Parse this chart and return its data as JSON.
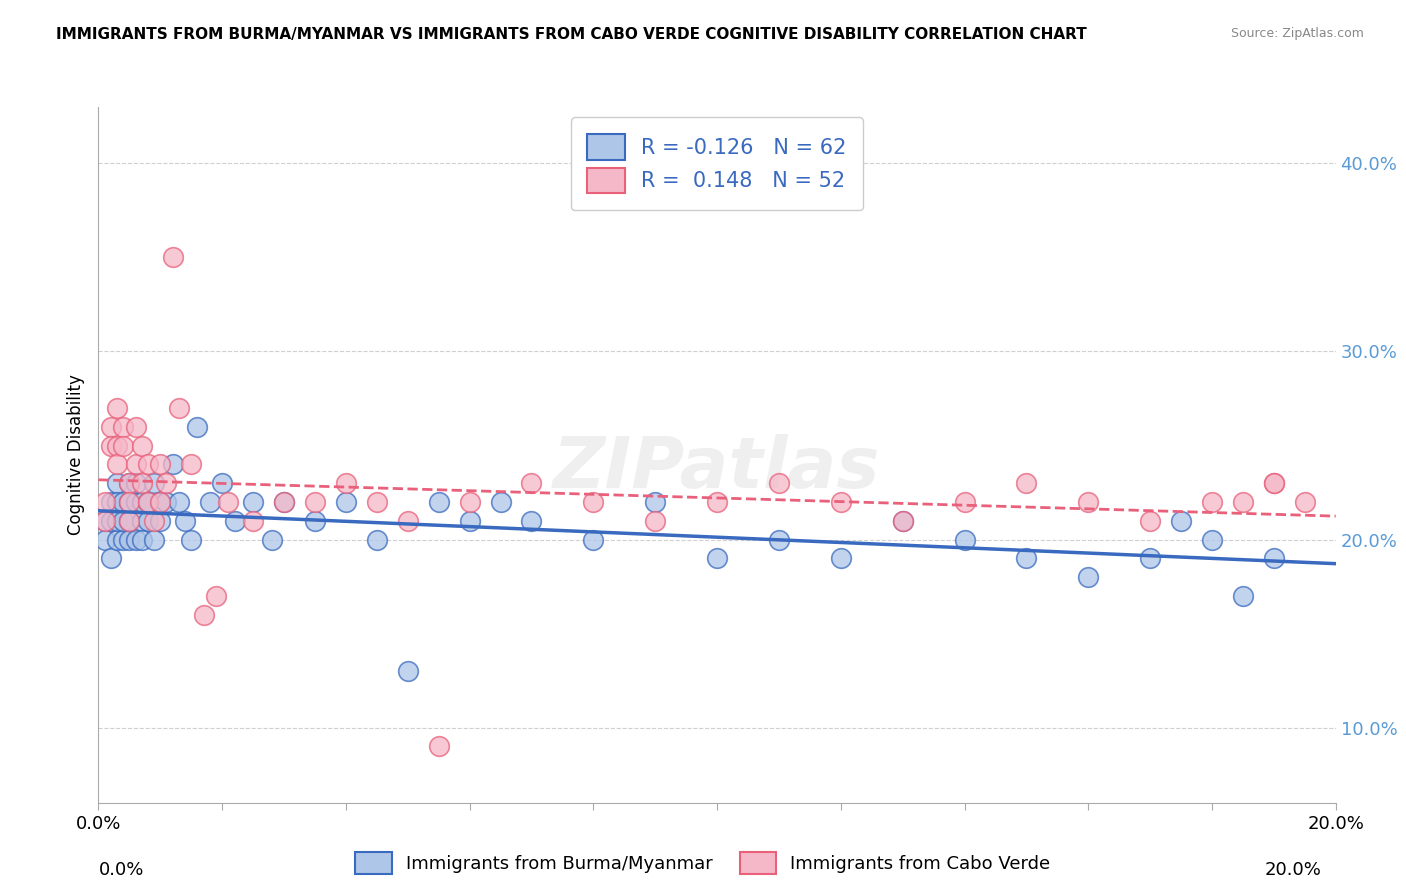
{
  "title": "IMMIGRANTS FROM BURMA/MYANMAR VS IMMIGRANTS FROM CABO VERDE COGNITIVE DISABILITY CORRELATION CHART",
  "source": "Source: ZipAtlas.com",
  "xlabel_blue": "Immigrants from Burma/Myanmar",
  "xlabel_pink": "Immigrants from Cabo Verde",
  "ylabel": "Cognitive Disability",
  "xlim": [
    0.0,
    0.2
  ],
  "ylim": [
    0.06,
    0.43
  ],
  "legend_blue_R": "-0.126",
  "legend_blue_N": "62",
  "legend_pink_R": "0.148",
  "legend_pink_N": "52",
  "color_blue": "#aec6e8",
  "color_pink": "#f5b8c8",
  "line_color_blue": "#3a6abf",
  "line_color_pink": "#e8607a",
  "background_color": "#ffffff",
  "grid_color": "#d0d0d0",
  "blue_scatter_x": [
    0.001,
    0.001,
    0.002,
    0.002,
    0.002,
    0.003,
    0.003,
    0.003,
    0.003,
    0.004,
    0.004,
    0.004,
    0.005,
    0.005,
    0.005,
    0.005,
    0.006,
    0.006,
    0.006,
    0.007,
    0.007,
    0.007,
    0.008,
    0.008,
    0.009,
    0.009,
    0.01,
    0.01,
    0.011,
    0.012,
    0.013,
    0.014,
    0.015,
    0.016,
    0.018,
    0.02,
    0.022,
    0.025,
    0.028,
    0.03,
    0.035,
    0.04,
    0.045,
    0.05,
    0.055,
    0.06,
    0.065,
    0.07,
    0.08,
    0.09,
    0.1,
    0.11,
    0.12,
    0.13,
    0.14,
    0.15,
    0.16,
    0.17,
    0.175,
    0.18,
    0.185,
    0.19
  ],
  "blue_scatter_y": [
    0.21,
    0.2,
    0.22,
    0.21,
    0.19,
    0.23,
    0.2,
    0.22,
    0.21,
    0.2,
    0.22,
    0.21,
    0.23,
    0.2,
    0.22,
    0.21,
    0.22,
    0.2,
    0.23,
    0.21,
    0.2,
    0.22,
    0.21,
    0.22,
    0.23,
    0.2,
    0.22,
    0.21,
    0.22,
    0.24,
    0.22,
    0.21,
    0.2,
    0.26,
    0.22,
    0.23,
    0.21,
    0.22,
    0.2,
    0.22,
    0.21,
    0.22,
    0.2,
    0.13,
    0.22,
    0.21,
    0.22,
    0.21,
    0.2,
    0.22,
    0.19,
    0.2,
    0.19,
    0.21,
    0.2,
    0.19,
    0.18,
    0.19,
    0.21,
    0.2,
    0.17,
    0.19
  ],
  "pink_scatter_x": [
    0.001,
    0.001,
    0.002,
    0.002,
    0.003,
    0.003,
    0.003,
    0.004,
    0.004,
    0.005,
    0.005,
    0.005,
    0.006,
    0.006,
    0.007,
    0.007,
    0.008,
    0.008,
    0.009,
    0.01,
    0.01,
    0.011,
    0.012,
    0.013,
    0.015,
    0.017,
    0.019,
    0.021,
    0.025,
    0.03,
    0.035,
    0.04,
    0.045,
    0.05,
    0.055,
    0.06,
    0.07,
    0.08,
    0.09,
    0.1,
    0.11,
    0.12,
    0.13,
    0.14,
    0.15,
    0.16,
    0.17,
    0.18,
    0.19,
    0.195,
    0.19,
    0.185
  ],
  "pink_scatter_y": [
    0.22,
    0.21,
    0.26,
    0.25,
    0.27,
    0.25,
    0.24,
    0.26,
    0.25,
    0.23,
    0.22,
    0.21,
    0.26,
    0.24,
    0.25,
    0.23,
    0.22,
    0.24,
    0.21,
    0.22,
    0.24,
    0.23,
    0.35,
    0.27,
    0.24,
    0.16,
    0.17,
    0.22,
    0.21,
    0.22,
    0.22,
    0.23,
    0.22,
    0.21,
    0.09,
    0.22,
    0.23,
    0.22,
    0.21,
    0.22,
    0.23,
    0.22,
    0.21,
    0.22,
    0.23,
    0.22,
    0.21,
    0.22,
    0.23,
    0.22,
    0.23,
    0.22
  ]
}
